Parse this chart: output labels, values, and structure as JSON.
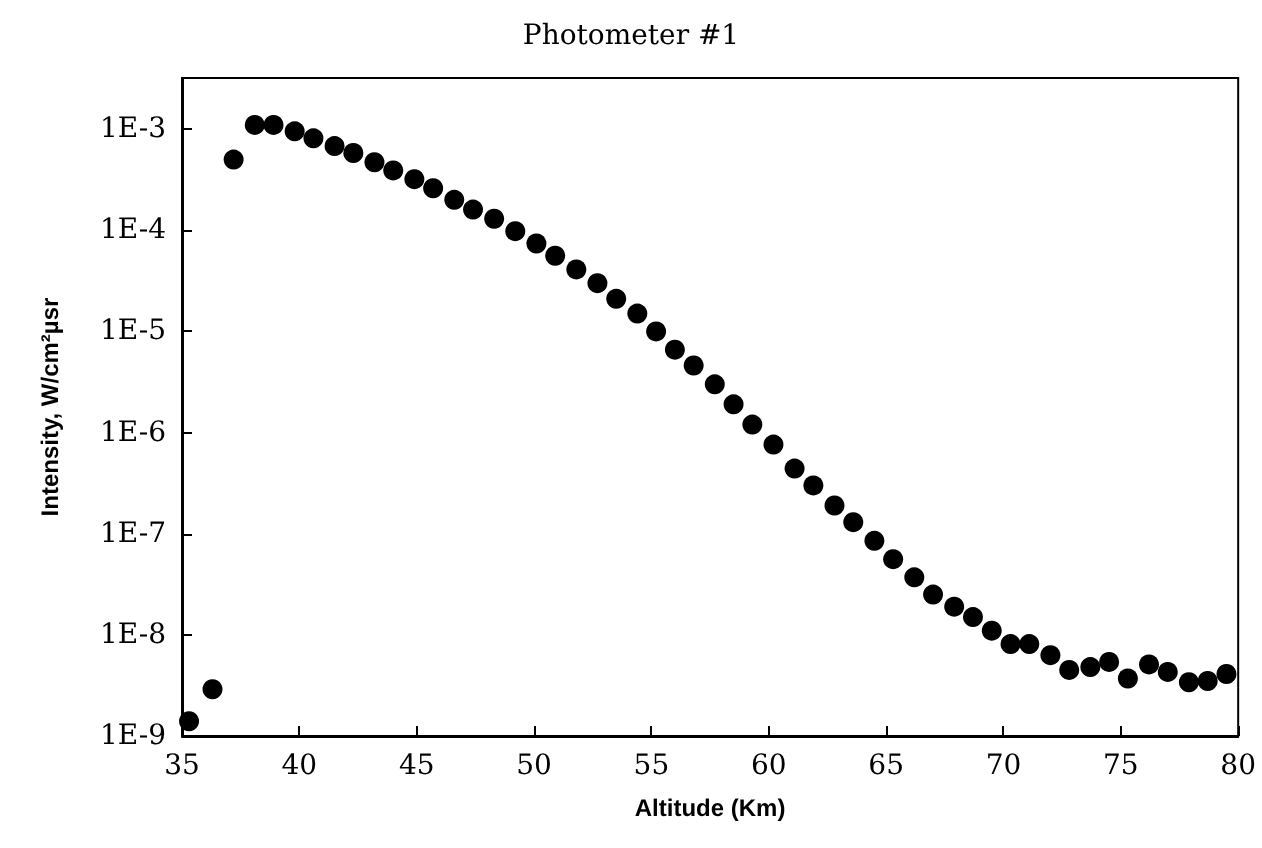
{
  "chart_data": {
    "type": "scatter",
    "title": "Photometer #1",
    "xlabel": "Altitude (Km)",
    "ylabel": "Intensity, W/cm²µsr",
    "log": "y",
    "grid": false,
    "marker": "circle",
    "xlim": [
      35,
      80
    ],
    "xticks": [
      35,
      40,
      45,
      50,
      55,
      60,
      65,
      70,
      75,
      80
    ],
    "ylim": [
      1e-09,
      0.0032
    ],
    "yticks": [
      {
        "value": 1e-09,
        "label": "1E-9"
      },
      {
        "value": 1e-08,
        "label": "1E-8"
      },
      {
        "value": 1e-07,
        "label": "1E-7"
      },
      {
        "value": 1e-06,
        "label": "1E-6"
      },
      {
        "value": 1e-05,
        "label": "1E-5"
      },
      {
        "value": 0.0001,
        "label": "1E-4"
      },
      {
        "value": 0.001,
        "label": "1E-3"
      }
    ],
    "series": [
      {
        "color": "#000000",
        "x": [
          35.3,
          36.3,
          37.2,
          38.1,
          38.9,
          39.8,
          40.6,
          41.5,
          42.3,
          43.2,
          44.0,
          44.9,
          45.7,
          46.6,
          47.4,
          48.3,
          49.2,
          50.1,
          50.9,
          51.8,
          52.7,
          53.5,
          54.4,
          55.2,
          56.0,
          56.8,
          57.7,
          58.5,
          59.3,
          60.2,
          61.1,
          61.9,
          62.8,
          63.6,
          64.5,
          65.3,
          66.2,
          67.0,
          67.9,
          68.7,
          69.5,
          70.3,
          71.1,
          72.0,
          72.8,
          73.7,
          74.5,
          75.3,
          76.2,
          77.0,
          77.9,
          78.7,
          79.5
        ],
        "values": [
          1.4e-09,
          2.9e-09,
          0.0005,
          0.0011,
          0.0011,
          0.00095,
          0.00081,
          0.00068,
          0.00058,
          0.00047,
          0.00039,
          0.00032,
          0.00026,
          0.0002,
          0.00016,
          0.00013,
          9.8e-05,
          7.4e-05,
          5.6e-05,
          4.1e-05,
          3e-05,
          2.1e-05,
          1.5e-05,
          1e-05,
          6.6e-06,
          4.6e-06,
          3e-06,
          1.9e-06,
          1.2e-06,
          7.6e-07,
          4.4e-07,
          3e-07,
          1.9e-07,
          1.3e-07,
          8.5e-08,
          5.6e-08,
          3.7e-08,
          2.5e-08,
          1.9e-08,
          1.5e-08,
          1.1e-08,
          8.1e-09,
          8.1e-09,
          6.3e-09,
          4.5e-09,
          4.8e-09,
          5.4e-09,
          3.7e-09,
          5.1e-09,
          4.3e-09,
          3.4e-09,
          3.5e-09,
          4.1e-09
        ]
      }
    ]
  }
}
